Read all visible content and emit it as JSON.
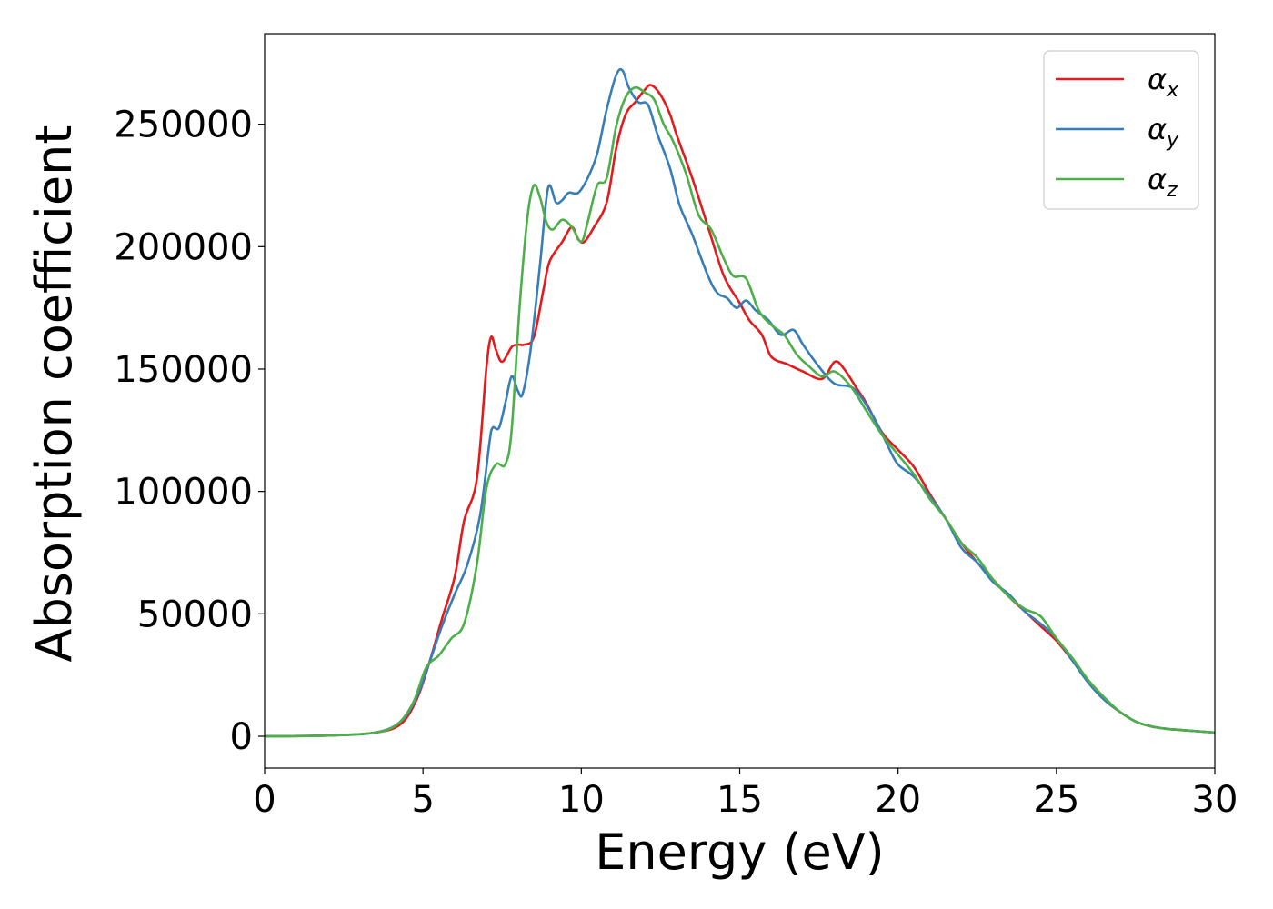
{
  "chart_data": {
    "type": "line",
    "title": "",
    "xlabel": "Energy (eV)",
    "ylabel": "Absorption coefficient",
    "xlim": [
      0,
      30
    ],
    "ylim": [
      -13000,
      287000
    ],
    "xticks": [
      0,
      5,
      10,
      15,
      20,
      25,
      30
    ],
    "xtick_labels": [
      "0",
      "5",
      "10",
      "15",
      "20",
      "25",
      "30"
    ],
    "yticks": [
      0,
      50000,
      100000,
      150000,
      200000,
      250000
    ],
    "ytick_labels": [
      "0",
      "50000",
      "100000",
      "150000",
      "200000",
      "250000"
    ],
    "grid": false,
    "legend_position": "top-right",
    "series": [
      {
        "name": "αx",
        "symbol": "α",
        "subscript": "x",
        "color": "#e41a1c",
        "points": [
          [
            0,
            0
          ],
          [
            2,
            300
          ],
          [
            3.5,
            1500
          ],
          [
            4.3,
            5000
          ],
          [
            4.8,
            15000
          ],
          [
            5.2,
            30000
          ],
          [
            5.6,
            48000
          ],
          [
            6,
            65000
          ],
          [
            6.3,
            88000
          ],
          [
            6.7,
            105000
          ],
          [
            7,
            150000
          ],
          [
            7.15,
            163000
          ],
          [
            7.3,
            158000
          ],
          [
            7.5,
            153000
          ],
          [
            7.8,
            159000
          ],
          [
            8,
            160000
          ],
          [
            8.2,
            160000
          ],
          [
            8.5,
            163000
          ],
          [
            8.8,
            182000
          ],
          [
            9,
            194000
          ],
          [
            9.4,
            202000
          ],
          [
            9.7,
            208000
          ],
          [
            9.9,
            203000
          ],
          [
            10.1,
            202000
          ],
          [
            10.4,
            208000
          ],
          [
            10.8,
            218000
          ],
          [
            11.1,
            240000
          ],
          [
            11.4,
            254000
          ],
          [
            11.7,
            259000
          ],
          [
            12,
            264000
          ],
          [
            12.2,
            266000
          ],
          [
            12.5,
            262000
          ],
          [
            12.8,
            254000
          ],
          [
            13,
            246000
          ],
          [
            13.5,
            228000
          ],
          [
            14,
            208000
          ],
          [
            14.5,
            188000
          ],
          [
            15,
            177000
          ],
          [
            15.3,
            170000
          ],
          [
            15.7,
            164000
          ],
          [
            16,
            155000
          ],
          [
            16.5,
            152000
          ],
          [
            17,
            149000
          ],
          [
            17.6,
            146000
          ],
          [
            18,
            153000
          ],
          [
            18.3,
            150000
          ],
          [
            18.7,
            142000
          ],
          [
            19,
            136000
          ],
          [
            19.5,
            124000
          ],
          [
            20,
            117000
          ],
          [
            20.5,
            110000
          ],
          [
            21,
            99000
          ],
          [
            21.5,
            89000
          ],
          [
            22,
            79000
          ],
          [
            22.5,
            71000
          ],
          [
            23,
            64000
          ],
          [
            23.5,
            57000
          ],
          [
            24,
            51000
          ],
          [
            24.5,
            45000
          ],
          [
            25,
            39000
          ],
          [
            25.5,
            31000
          ],
          [
            26,
            22000
          ],
          [
            26.5,
            15000
          ],
          [
            27,
            10000
          ],
          [
            27.5,
            6000
          ],
          [
            28,
            4000
          ],
          [
            28.5,
            3000
          ],
          [
            29,
            2500
          ],
          [
            30,
            1500
          ]
        ]
      },
      {
        "name": "αy",
        "symbol": "α",
        "subscript": "y",
        "color": "#377eb8",
        "points": [
          [
            0,
            0
          ],
          [
            2,
            300
          ],
          [
            3.5,
            1500
          ],
          [
            4.3,
            6000
          ],
          [
            4.8,
            16000
          ],
          [
            5.2,
            30000
          ],
          [
            5.6,
            45000
          ],
          [
            6,
            58000
          ],
          [
            6.4,
            70000
          ],
          [
            6.8,
            90000
          ],
          [
            7.1,
            120000
          ],
          [
            7.2,
            126000
          ],
          [
            7.4,
            126000
          ],
          [
            7.6,
            136000
          ],
          [
            7.8,
            147000
          ],
          [
            8,
            141000
          ],
          [
            8.15,
            140000
          ],
          [
            8.4,
            158000
          ],
          [
            8.7,
            193000
          ],
          [
            8.95,
            224000
          ],
          [
            9.2,
            218000
          ],
          [
            9.4,
            219000
          ],
          [
            9.6,
            222000
          ],
          [
            9.9,
            222000
          ],
          [
            10.2,
            228000
          ],
          [
            10.5,
            238000
          ],
          [
            10.8,
            256000
          ],
          [
            11.1,
            270000
          ],
          [
            11.3,
            272000
          ],
          [
            11.5,
            265000
          ],
          [
            11.8,
            259000
          ],
          [
            12.1,
            258000
          ],
          [
            12.4,
            246000
          ],
          [
            12.8,
            232000
          ],
          [
            13.1,
            217000
          ],
          [
            13.5,
            205000
          ],
          [
            14,
            188000
          ],
          [
            14.3,
            181000
          ],
          [
            14.6,
            179000
          ],
          [
            14.9,
            175000
          ],
          [
            15.2,
            178000
          ],
          [
            15.5,
            174000
          ],
          [
            15.9,
            170000
          ],
          [
            16.3,
            164000
          ],
          [
            16.7,
            166000
          ],
          [
            17,
            160000
          ],
          [
            17.5,
            151000
          ],
          [
            18,
            144000
          ],
          [
            18.6,
            142000
          ],
          [
            19.2,
            131000
          ],
          [
            19.7,
            118000
          ],
          [
            20,
            111000
          ],
          [
            20.5,
            106000
          ],
          [
            21,
            98000
          ],
          [
            21.5,
            89000
          ],
          [
            22,
            77000
          ],
          [
            22.5,
            71000
          ],
          [
            23,
            63000
          ],
          [
            23.5,
            58000
          ],
          [
            24,
            51000
          ],
          [
            24.5,
            46000
          ],
          [
            25,
            40000
          ],
          [
            25.5,
            31000
          ],
          [
            26,
            22000
          ],
          [
            26.5,
            15000
          ],
          [
            27,
            10000
          ],
          [
            27.5,
            6000
          ],
          [
            28,
            4000
          ],
          [
            28.5,
            3000
          ],
          [
            29,
            2500
          ],
          [
            30,
            1500
          ]
        ]
      },
      {
        "name": "αz",
        "symbol": "α",
        "subscript": "z",
        "color": "#4daf4a",
        "points": [
          [
            0,
            0
          ],
          [
            2,
            300
          ],
          [
            3.5,
            1500
          ],
          [
            4.2,
            5000
          ],
          [
            4.7,
            14000
          ],
          [
            5.1,
            28000
          ],
          [
            5.5,
            33000
          ],
          [
            5.9,
            40000
          ],
          [
            6.3,
            46000
          ],
          [
            6.7,
            70000
          ],
          [
            7,
            101000
          ],
          [
            7.3,
            111000
          ],
          [
            7.6,
            111000
          ],
          [
            7.8,
            125000
          ],
          [
            8.05,
            175000
          ],
          [
            8.3,
            212000
          ],
          [
            8.5,
            225000
          ],
          [
            8.7,
            220000
          ],
          [
            8.9,
            210000
          ],
          [
            9.1,
            207000
          ],
          [
            9.4,
            211000
          ],
          [
            9.7,
            208000
          ],
          [
            10,
            202000
          ],
          [
            10.2,
            210000
          ],
          [
            10.5,
            225000
          ],
          [
            10.8,
            228000
          ],
          [
            11.1,
            249000
          ],
          [
            11.4,
            261000
          ],
          [
            11.7,
            265000
          ],
          [
            12,
            263000
          ],
          [
            12.3,
            260000
          ],
          [
            12.6,
            250000
          ],
          [
            12.9,
            243000
          ],
          [
            13.3,
            230000
          ],
          [
            13.7,
            213000
          ],
          [
            14.1,
            207000
          ],
          [
            14.5,
            195000
          ],
          [
            14.8,
            188000
          ],
          [
            15.2,
            187000
          ],
          [
            15.6,
            174000
          ],
          [
            16,
            168000
          ],
          [
            16.4,
            164000
          ],
          [
            16.8,
            156000
          ],
          [
            17.2,
            151000
          ],
          [
            17.6,
            147000
          ],
          [
            18,
            149000
          ],
          [
            18.5,
            143000
          ],
          [
            19,
            133000
          ],
          [
            19.5,
            123000
          ],
          [
            20,
            115000
          ],
          [
            20.5,
            107000
          ],
          [
            21,
            97000
          ],
          [
            21.5,
            89000
          ],
          [
            22,
            79000
          ],
          [
            22.5,
            73000
          ],
          [
            23,
            64000
          ],
          [
            23.5,
            57000
          ],
          [
            24,
            52000
          ],
          [
            24.5,
            49000
          ],
          [
            25,
            40000
          ],
          [
            25.5,
            32000
          ],
          [
            26,
            23000
          ],
          [
            26.5,
            16000
          ],
          [
            27,
            10000
          ],
          [
            27.5,
            6000
          ],
          [
            28,
            4000
          ],
          [
            28.5,
            3000
          ],
          [
            29,
            2500
          ],
          [
            30,
            1500
          ]
        ]
      }
    ]
  }
}
